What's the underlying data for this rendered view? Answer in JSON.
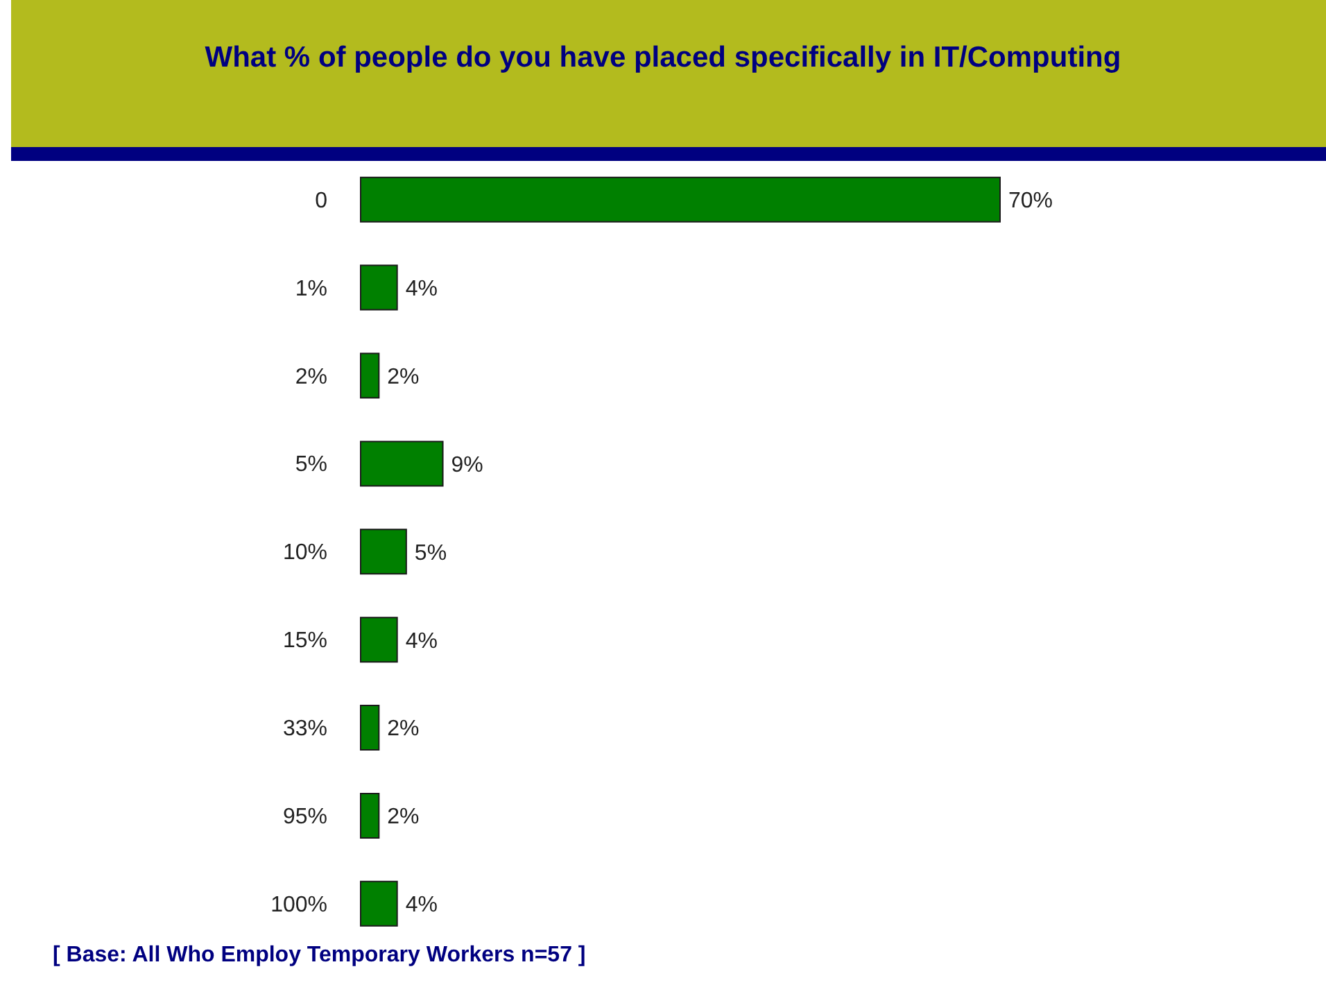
{
  "chart_data": {
    "type": "bar",
    "orientation": "horizontal",
    "title": "What % of people do you have placed specifically in IT/Computing",
    "categories": [
      "0",
      "1%",
      "2%",
      "5%",
      "10%",
      "15%",
      "33%",
      "95%",
      "100%"
    ],
    "values": [
      70,
      4,
      2,
      9,
      5,
      4,
      2,
      2,
      4
    ],
    "value_labels": [
      "70%",
      "4%",
      "2%",
      "9%",
      "5%",
      "4%",
      "2%",
      "2%",
      "4%"
    ],
    "color": "#008000",
    "annotations": [
      "[ Base:  All Who Employ Temporary Workers n=57 ]"
    ]
  }
}
